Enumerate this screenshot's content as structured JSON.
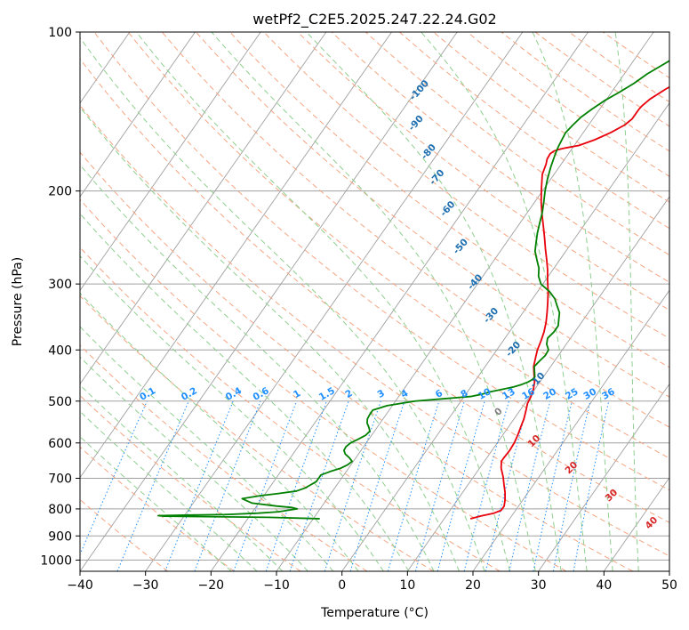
{
  "chart_data": {
    "type": "line",
    "title": "wetPf2_C2E5.2025.247.22.24.G02",
    "xlabel": "Temperature (°C)",
    "ylabel": "Pressure (hPa)",
    "xlim": [
      -40,
      50
    ],
    "ylim": [
      1050,
      100
    ],
    "y_scale": "log",
    "grid": true,
    "x_ticks": [
      "−40",
      "−30",
      "−20",
      "−10",
      "0",
      "10",
      "20",
      "30",
      "40",
      "50"
    ],
    "y_ticks": [
      "100",
      "200",
      "300",
      "400",
      "500",
      "600",
      "700",
      "800",
      "900",
      "1000"
    ],
    "colors": {
      "temperature": "#e8000b",
      "dewpoint": "#008000",
      "isotherm": "#a0a0a0",
      "dry_adiabat": "#f4a582",
      "moist_adiabat": "#8fcf8f",
      "mixing_ratio": "#1f8fff",
      "dry_label": "#1f6fb0",
      "moist_label": "#d62728"
    },
    "series": [
      {
        "kind": "temperature",
        "p": [
          835,
          825,
          815,
          805,
          790,
          770,
          745,
          720,
          695,
          670,
          650,
          640,
          620,
          600,
          580,
          560,
          540,
          520,
          505,
          490,
          475,
          460,
          445,
          430,
          415,
          400,
          385,
          370,
          355,
          340,
          325,
          310,
          295,
          282,
          270,
          258,
          246,
          234,
          222,
          210,
          198,
          186,
          178,
          174,
          170,
          168,
          167,
          166,
          165,
          164,
          160,
          155,
          150,
          146,
          143,
          140,
          138,
          134,
          128,
          122,
          116,
          110,
          104,
          100
        ],
        "t": [
          14.0,
          15.3,
          17.0,
          17.8,
          17.8,
          17.3,
          16.5,
          15.5,
          14.5,
          13.3,
          12.6,
          12.6,
          12.7,
          12.6,
          12.3,
          11.9,
          11.5,
          10.9,
          10.4,
          10.2,
          9.8,
          9.2,
          8.3,
          7.4,
          6.8,
          6.2,
          5.8,
          5.3,
          4.6,
          3.7,
          2.7,
          1.6,
          0.3,
          -0.8,
          -2.0,
          -3.3,
          -4.6,
          -6.0,
          -7.5,
          -9.0,
          -10.4,
          -11.8,
          -12.3,
          -12.7,
          -12.8,
          -12.5,
          -12.0,
          -11.3,
          -10.3,
          -9.3,
          -7.5,
          -5.8,
          -4.5,
          -4.0,
          -4.0,
          -4.0,
          -3.9,
          -3.4,
          -2.0,
          0.1,
          2.0,
          3.7,
          4.9,
          5.4
        ]
      },
      {
        "kind": "dewpoint",
        "p": [
          835,
          830,
          828,
          826,
          824,
          822,
          820,
          815,
          810,
          805,
          800,
          795,
          790,
          780,
          765,
          755,
          748,
          740,
          730,
          720,
          710,
          700,
          690,
          680,
          670,
          660,
          650,
          640,
          630,
          620,
          610,
          600,
          590,
          580,
          570,
          560,
          550,
          540,
          530,
          520,
          510,
          500,
          495,
          490,
          485,
          480,
          475,
          470,
          465,
          460,
          455,
          450,
          440,
          430,
          420,
          410,
          400,
          390,
          380,
          370,
          360,
          350,
          340,
          330,
          320,
          310,
          300,
          290,
          280,
          270,
          260,
          250,
          240,
          230,
          220,
          210,
          200,
          190,
          180,
          170,
          165,
          160,
          155,
          150,
          145,
          140,
          135,
          130,
          125,
          120,
          115,
          110,
          105,
          100
        ],
        "t": [
          -9.0,
          -17.0,
          -25.0,
          -33.0,
          -34.0,
          -30.0,
          -24.0,
          -19.0,
          -16.0,
          -14.8,
          -13.5,
          -14.5,
          -17.0,
          -21.0,
          -23.0,
          -20.5,
          -18.0,
          -15.5,
          -14.5,
          -14.0,
          -13.5,
          -13.5,
          -13.5,
          -12.5,
          -11.2,
          -10.5,
          -10.2,
          -11.0,
          -12.0,
          -12.6,
          -12.7,
          -12.4,
          -11.6,
          -10.9,
          -10.7,
          -11.3,
          -12.0,
          -12.4,
          -12.5,
          -12.5,
          -10.8,
          -7.0,
          -3.0,
          1.0,
          2.5,
          3.5,
          5.0,
          6.5,
          7.5,
          8.2,
          8.6,
          8.7,
          8.1,
          7.5,
          7.7,
          8.0,
          7.9,
          7.0,
          6.5,
          6.8,
          6.8,
          6.2,
          5.6,
          4.5,
          3.4,
          1.8,
          -0.3,
          -1.5,
          -2.3,
          -3.5,
          -4.7,
          -5.5,
          -6.3,
          -7.0,
          -7.7,
          -8.6,
          -9.6,
          -10.5,
          -11.3,
          -12.0,
          -12.3,
          -12.5,
          -12.7,
          -12.4,
          -12.0,
          -11.2,
          -10.2,
          -8.8,
          -7.5,
          -6.5,
          -5.0,
          -3.5,
          -1.5,
          1.3
        ]
      }
    ],
    "dry_adiabat_labels": [
      "-100",
      "-90",
      "-80",
      "-70",
      "-60",
      "-50",
      "-40",
      "-30",
      "-20",
      "-10"
    ],
    "moist_adiabat_labels": [
      "0",
      "10",
      "20",
      "30",
      "40"
    ],
    "mixing_ratio_labels": [
      "0.1",
      "0.2",
      "0.4",
      "0.6",
      "1",
      "1.5",
      "2",
      "3",
      "4",
      "6",
      "8",
      "10",
      "13",
      "16",
      "20",
      "25",
      "30",
      "36"
    ]
  }
}
